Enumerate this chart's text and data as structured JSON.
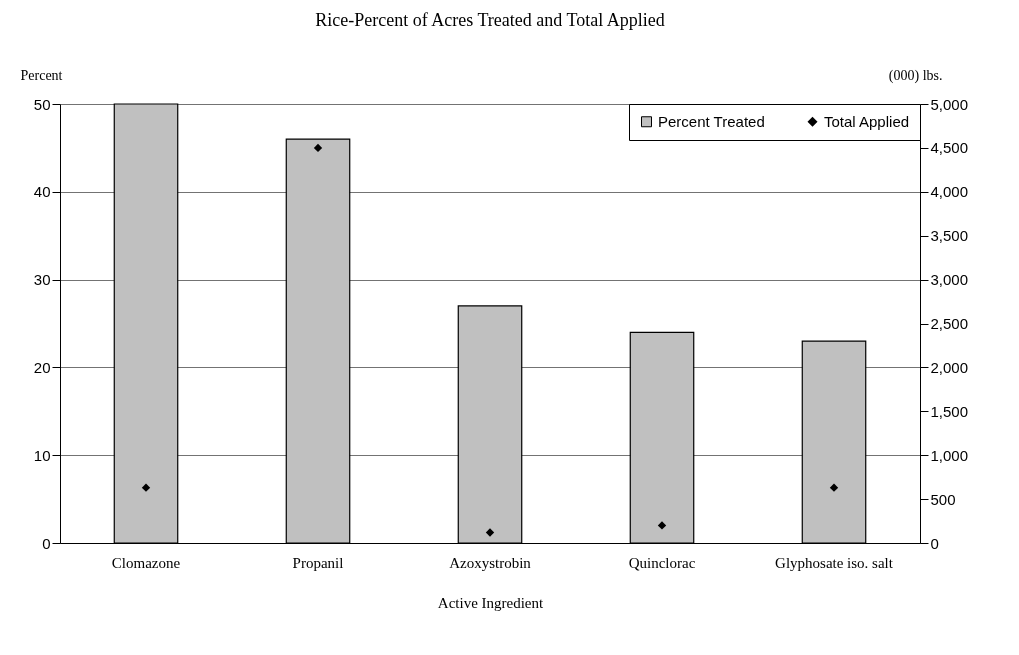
{
  "chart_data": {
    "type": "bar",
    "title": "Rice-Percent of Acres Treated and Total Applied",
    "xlabel": "Active Ingredient",
    "ylabel": "Percent",
    "y2label": "(000) lbs.",
    "categories": [
      "Clomazone",
      "Propanil",
      "Azoxystrobin",
      "Quinclorac",
      "Glyphosate iso. salt"
    ],
    "series": [
      {
        "name": "Percent Treated",
        "color": "#c0c0c0",
        "values": [
          50,
          46,
          27,
          24,
          23
        ]
      },
      {
        "name": "Total Applied",
        "type": "scatter",
        "axis": "y2",
        "marker": "diamond",
        "color": "#000000",
        "values": [
          630,
          4500,
          120,
          200,
          630
        ]
      }
    ],
    "ylim": [
      0,
      50
    ],
    "yticks": [
      0,
      10,
      20,
      30,
      40,
      50
    ],
    "y2lim": [
      0,
      5000
    ],
    "y2ticks": [
      0,
      {
        "value": 500,
        "label": "500"
      },
      {
        "value": 1000,
        "label": "1,000"
      },
      {
        "value": 1500,
        "label": "1,500"
      },
      {
        "value": 2000,
        "label": "2,000"
      },
      {
        "value": 2500,
        "label": "2,500"
      },
      {
        "value": 3000,
        "label": "3,000"
      },
      {
        "value": 3500,
        "label": "3,500"
      },
      {
        "value": 4000,
        "label": "4,000"
      },
      {
        "value": 4500,
        "label": "4,500"
      },
      {
        "value": 5000,
        "label": "5,000"
      }
    ],
    "grid": "y",
    "legend": "top right"
  }
}
